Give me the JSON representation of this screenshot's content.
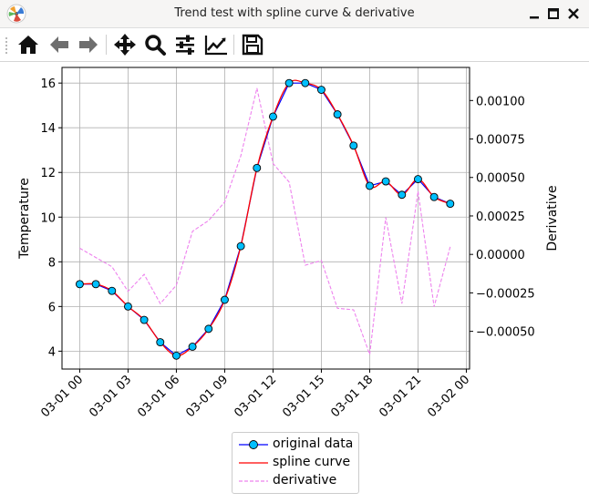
{
  "window": {
    "title": "Trend test with spline curve & derivative"
  },
  "toolbar": {
    "tools": [
      {
        "name": "home-icon"
      },
      {
        "name": "back-arrow-icon"
      },
      {
        "name": "forward-arrow-icon"
      },
      {
        "name": "pan-icon"
      },
      {
        "name": "zoom-icon"
      },
      {
        "name": "configure-subplots-icon"
      },
      {
        "name": "edit-axis-icon"
      },
      {
        "name": "save-icon"
      }
    ]
  },
  "chart_data": {
    "type": "line",
    "title": "",
    "xlabel": "",
    "ylabel": "Temperature",
    "y2label": "Derivative",
    "x_tick_labels": [
      "03-01 00",
      "03-01 03",
      "03-01 06",
      "03-01 09",
      "03-01 12",
      "03-01 15",
      "03-01 18",
      "03-01 21",
      "03-02 00"
    ],
    "x_tick_hours": [
      0,
      3,
      6,
      9,
      12,
      15,
      18,
      21,
      24
    ],
    "xlim_hours": [
      -1.1,
      24.2
    ],
    "ylim": [
      3.2,
      16.7
    ],
    "y_ticks": [
      4,
      6,
      8,
      10,
      12,
      14,
      16
    ],
    "y2lim": [
      -0.000745,
      0.001215
    ],
    "y2_ticks": [
      -0.0005,
      -0.00025,
      0.0,
      0.00025,
      0.0005,
      0.00075,
      0.001
    ],
    "y2_tick_labels": [
      "−0.00050",
      "−0.00025",
      "0.00000",
      "0.00025",
      "0.00050",
      "0.00075",
      "0.00100"
    ],
    "grid": true,
    "legend_position": "below-center",
    "series": [
      {
        "name": "original data",
        "color": "#0000ff",
        "marker_color": "#00bfff",
        "axis": "left",
        "x_hours": [
          0,
          1,
          2,
          3,
          4,
          5,
          6,
          7,
          8,
          9,
          10,
          11,
          12,
          13,
          14,
          15,
          16,
          17,
          18,
          19,
          20,
          21,
          22,
          23
        ],
        "values": [
          7.0,
          7.0,
          6.7,
          6.0,
          5.4,
          4.4,
          3.8,
          4.2,
          5.0,
          6.3,
          8.7,
          12.2,
          14.5,
          16.0,
          16.0,
          15.7,
          14.6,
          13.2,
          11.4,
          11.6,
          11.0,
          11.7,
          10.9,
          10.6
        ]
      },
      {
        "name": "spline curve",
        "color": "#ff0000",
        "axis": "left",
        "x_hours": [
          0,
          1,
          2,
          3,
          4,
          5,
          6,
          7,
          8,
          9,
          10,
          11,
          12,
          13,
          14,
          15,
          16,
          17,
          18,
          19,
          20,
          21,
          22,
          23
        ],
        "values": [
          7.0,
          7.0,
          6.7,
          6.0,
          5.4,
          4.4,
          3.8,
          4.2,
          5.0,
          6.3,
          8.7,
          12.2,
          14.5,
          16.0,
          16.0,
          15.7,
          14.6,
          13.2,
          11.4,
          11.6,
          11.0,
          11.7,
          10.9,
          10.6
        ]
      },
      {
        "name": "derivative",
        "color": "#ee82ee",
        "axis": "right",
        "x_hours": [
          0,
          1,
          2,
          3,
          4,
          5,
          6,
          7,
          8,
          9,
          10,
          11,
          12,
          13,
          14,
          15,
          16,
          17,
          18,
          19,
          20,
          21,
          22,
          23
        ],
        "values": [
          4e-05,
          -2e-05,
          -8e-05,
          -0.00024,
          -0.00013,
          -0.00032,
          -0.0002,
          0.00015,
          0.00022,
          0.00034,
          0.00064,
          0.00108,
          0.00059,
          0.00047,
          -7e-05,
          -4e-05,
          -0.00035,
          -0.00036,
          -0.00065,
          0.00024,
          -0.00032,
          0.00041,
          -0.00034,
          5e-05
        ]
      }
    ]
  }
}
